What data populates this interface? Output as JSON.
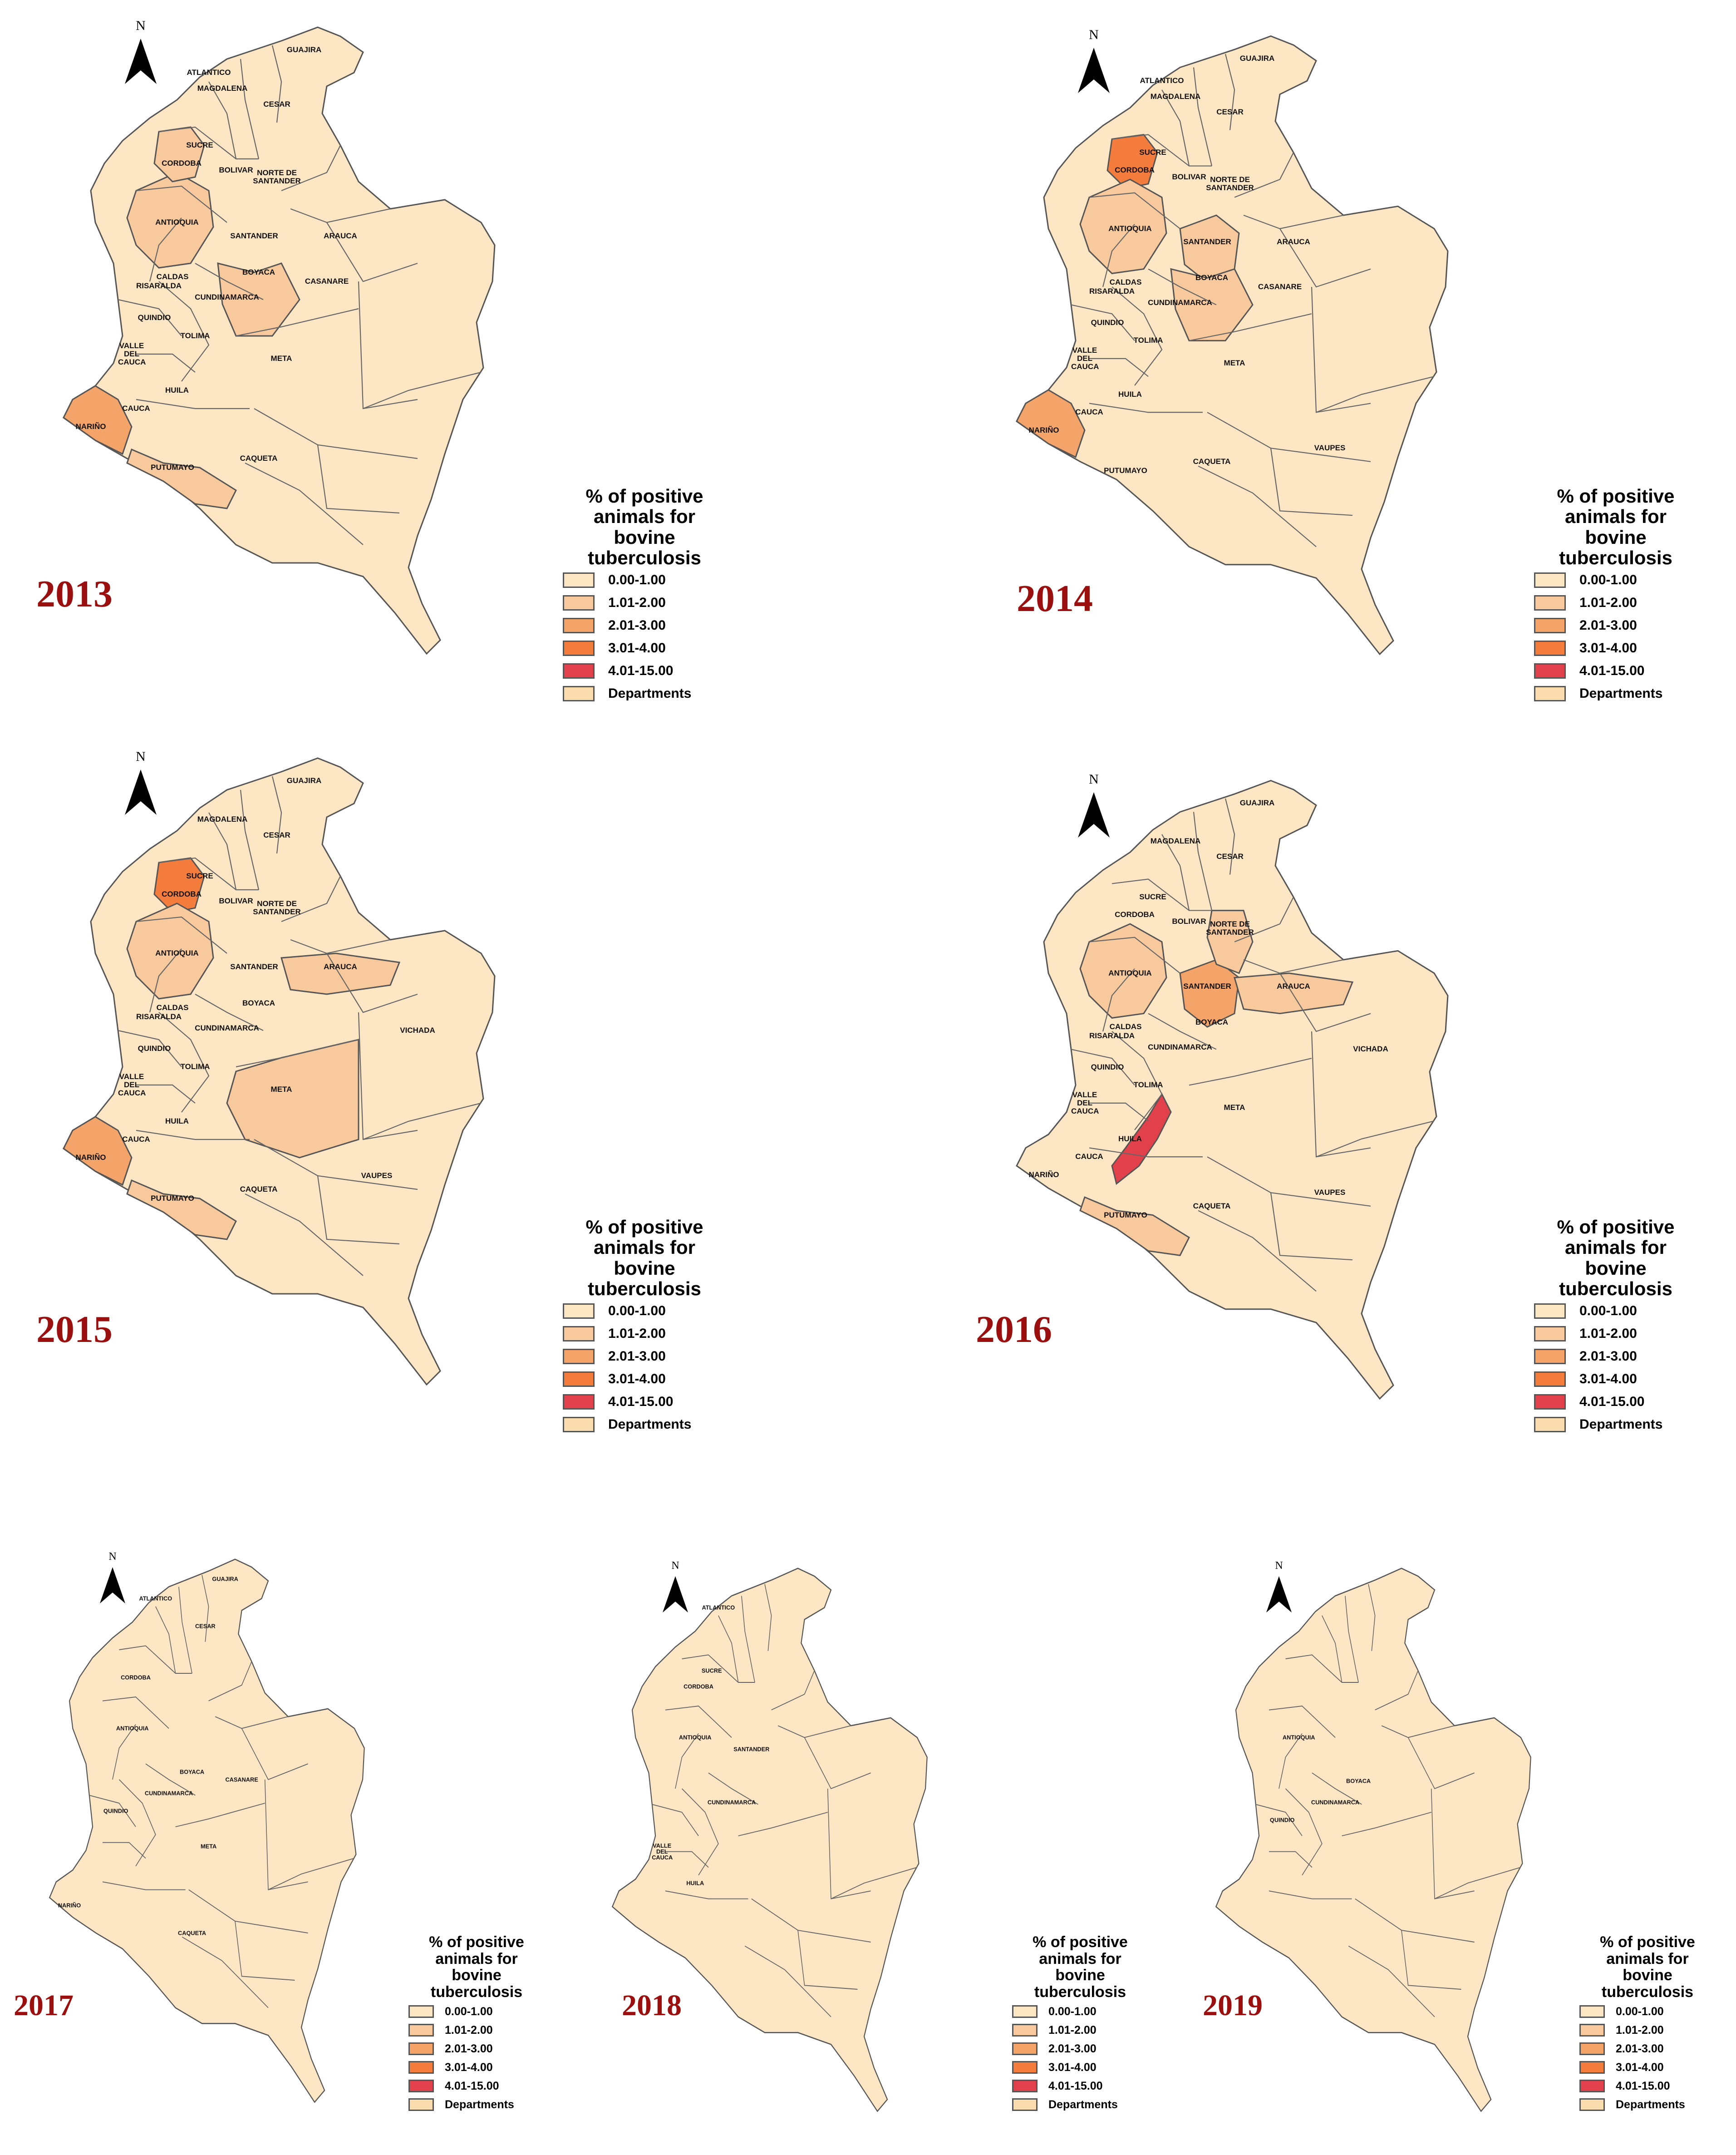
{
  "legend": {
    "title_lines": [
      "% of positive",
      "animals for",
      "bovine",
      "tuberculosis"
    ],
    "classes": [
      {
        "label": "0.00-1.00",
        "color": "#fde6c4"
      },
      {
        "label": "1.01-2.00",
        "color": "#f8c99c"
      },
      {
        "label": "2.01-3.00",
        "color": "#f4a469"
      },
      {
        "label": "3.01-4.00",
        "color": "#f47c3c"
      },
      {
        "label": "4.01-15.00",
        "color": "#e2404a"
      }
    ],
    "departments_label": "Departments",
    "departments_color": "#fbdcae"
  },
  "north_label": "N",
  "maps": [
    {
      "year": "2013",
      "labels": [
        "GUAJIRA",
        "ATLANTICO",
        "MAGDALENA",
        "CESAR",
        "SUCRE",
        "CORDOBA",
        "BOLIVAR",
        "NORTE DE SANTANDER",
        "ANTIOQUIA",
        "SANTANDER",
        "ARAUCA",
        "BOYACA",
        "CALDAS",
        "RISARALDA",
        "CUNDINAMARCA",
        "CASANARE",
        "QUINDIO",
        "TOLIMA",
        "VALLE DEL CAUCA",
        "META",
        "HUILA",
        "CAUCA",
        "NARIÑO",
        "PUTUMAYO",
        "CAQUETA"
      ],
      "highlights": [
        {
          "region": "antioquia",
          "class": 1
        },
        {
          "region": "cordoba",
          "class": 1
        },
        {
          "region": "cundinamarca-boyaca",
          "class": 1
        },
        {
          "region": "narino",
          "class": 2
        },
        {
          "region": "putumayo",
          "class": 1
        }
      ]
    },
    {
      "year": "2014",
      "labels": [
        "GUAJIRA",
        "ATLANTICO",
        "MAGDALENA",
        "CESAR",
        "SUCRE",
        "CORDOBA",
        "BOLIVAR",
        "NORTE DE SANTANDER",
        "ANTIOQUIA",
        "SANTANDER",
        "ARAUCA",
        "BOYACA",
        "CALDAS",
        "RISARALDA",
        "CUNDINAMARCA",
        "CASANARE",
        "QUINDIO",
        "TOLIMA",
        "VALLE DEL CAUCA",
        "META",
        "HUILA",
        "CAUCA",
        "NARIÑO",
        "PUTUMAYO",
        "CAQUETA",
        "VAUPES"
      ],
      "highlights": [
        {
          "region": "cordoba",
          "class": 3
        },
        {
          "region": "antioquia",
          "class": 1
        },
        {
          "region": "santander",
          "class": 1
        },
        {
          "region": "cundinamarca-boyaca",
          "class": 1
        },
        {
          "region": "narino",
          "class": 2
        }
      ]
    },
    {
      "year": "2015",
      "labels": [
        "GUAJIRA",
        "MAGDALENA",
        "CESAR",
        "SUCRE",
        "CORDOBA",
        "BOLIVAR",
        "NORTE DE SANTANDER",
        "ANTIOQUIA",
        "SANTANDER",
        "ARAUCA",
        "BOYACA",
        "CALDAS",
        "RISARALDA",
        "CUNDINAMARCA",
        "VICHADA",
        "QUINDIO",
        "TOLIMA",
        "VALLE DEL CAUCA",
        "META",
        "HUILA",
        "CAUCA",
        "NARIÑO",
        "PUTUMAYO",
        "CAQUETA",
        "VAUPES"
      ],
      "highlights": [
        {
          "region": "cordoba",
          "class": 3
        },
        {
          "region": "antioquia",
          "class": 1
        },
        {
          "region": "arauca",
          "class": 1
        },
        {
          "region": "meta",
          "class": 1
        },
        {
          "region": "narino",
          "class": 2
        },
        {
          "region": "putumayo",
          "class": 1
        }
      ]
    },
    {
      "year": "2016",
      "labels": [
        "GUAJIRA",
        "MAGDALENA",
        "CESAR",
        "SUCRE",
        "CORDOBA",
        "BOLIVAR",
        "NORTE DE SANTANDER",
        "ANTIOQUIA",
        "SANTANDER",
        "ARAUCA",
        "BOYACA",
        "CALDAS",
        "RISARALDA",
        "CUNDINAMARCA",
        "VICHADA",
        "QUINDIO",
        "TOLIMA",
        "VALLE DEL CAUCA",
        "META",
        "HUILA",
        "CAUCA",
        "NARIÑO",
        "PUTUMAYO",
        "CAQUETA",
        "VAUPES"
      ],
      "highlights": [
        {
          "region": "santander",
          "class": 2
        },
        {
          "region": "norte-santander",
          "class": 1
        },
        {
          "region": "antioquia",
          "class": 1
        },
        {
          "region": "arauca",
          "class": 1
        },
        {
          "region": "huila",
          "class": 4
        },
        {
          "region": "putumayo",
          "class": 1
        }
      ]
    },
    {
      "year": "2017",
      "labels": [
        "GUAJIRA",
        "ATLANTICO",
        "CESAR",
        "CORDOBA",
        "ANTIOQUIA",
        "BOYACA",
        "CASANARE",
        "CUNDINAMARCA",
        "QUINDIO",
        "META",
        "NARIÑO",
        "CAQUETA"
      ],
      "highlights": []
    },
    {
      "year": "2018",
      "labels": [
        "ATLANTICO",
        "SUCRE",
        "CORDOBA",
        "ANTIOQUIA",
        "SANTANDER",
        "CUNDINAMARCA",
        "VALLE DEL CAUCA",
        "HUILA"
      ],
      "highlights": []
    },
    {
      "year": "2019",
      "labels": [
        "ANTIOQUIA",
        "BOYACA",
        "CUNDINAMARCA",
        "QUINDIO"
      ],
      "highlights": []
    }
  ]
}
